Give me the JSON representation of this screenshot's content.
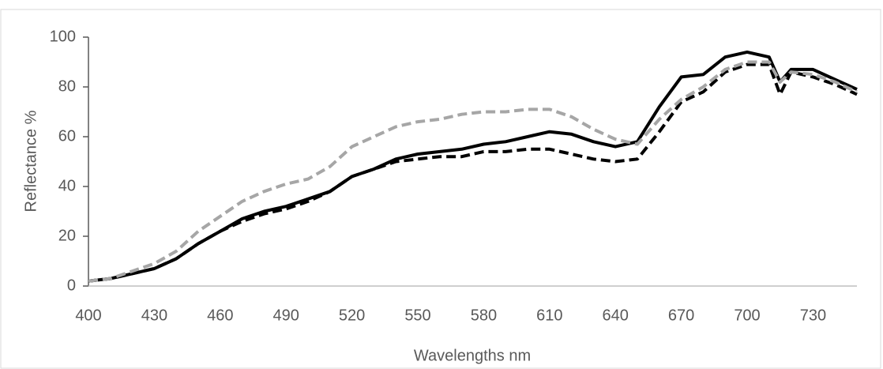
{
  "chart_data": {
    "type": "line",
    "x_label": "Wavelengths nm",
    "y_label": "Reflectance %",
    "x": [
      400,
      410,
      420,
      430,
      440,
      450,
      460,
      470,
      480,
      490,
      500,
      510,
      520,
      530,
      540,
      550,
      560,
      570,
      580,
      590,
      600,
      610,
      620,
      630,
      640,
      650,
      660,
      670,
      680,
      690,
      700,
      710,
      715,
      720,
      730,
      740,
      750
    ],
    "series": [
      {
        "color": "#000000",
        "dashed": false,
        "values": [
          2,
          3,
          5,
          7,
          11,
          17,
          22,
          27,
          30,
          32,
          35,
          38,
          44,
          47,
          51,
          53,
          54,
          55,
          57,
          58,
          60,
          62,
          61,
          58,
          56,
          58,
          72,
          84,
          85,
          92,
          94,
          92,
          82,
          87,
          87,
          83,
          79
        ]
      },
      {
        "color": "#000000",
        "dashed": true,
        "values": [
          2,
          3,
          5,
          7,
          11,
          17,
          22,
          26,
          29,
          31,
          34,
          38,
          44,
          47,
          50,
          51,
          52,
          52,
          54,
          54,
          55,
          55,
          53,
          51,
          50,
          51,
          62,
          74,
          78,
          86,
          89,
          89,
          77,
          86,
          84,
          81,
          77
        ]
      },
      {
        "color": "#a6a6a6",
        "dashed": true,
        "values": [
          2,
          3,
          6,
          9,
          14,
          22,
          28,
          34,
          38,
          41,
          43,
          48,
          56,
          60,
          64,
          66,
          67,
          69,
          70,
          70,
          71,
          71,
          68,
          63,
          59,
          57,
          67,
          75,
          80,
          87,
          90,
          90,
          82,
          86,
          85,
          82,
          78
        ]
      }
    ],
    "xlim": [
      400,
      750
    ],
    "xticks": [
      400,
      430,
      460,
      490,
      520,
      550,
      580,
      610,
      640,
      670,
      700,
      730
    ],
    "ylim": [
      0,
      100
    ],
    "yticks": [
      0,
      20,
      40,
      60,
      80,
      100
    ],
    "grid": false
  }
}
